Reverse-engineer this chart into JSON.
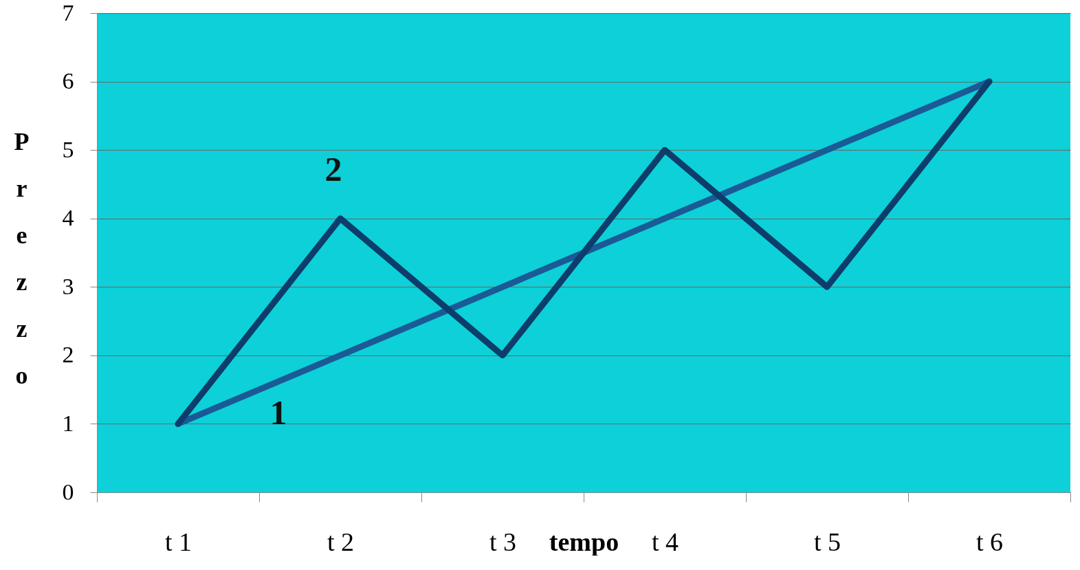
{
  "chart_data": {
    "type": "line",
    "xlabel": "tempo",
    "ylabel": "Prezzo",
    "categories": [
      "t 1",
      "t 2",
      "t 3",
      "t 4",
      "t 5",
      "t 6"
    ],
    "series": [
      {
        "name": "1",
        "color": "#1a5a96",
        "values": [
          1,
          2,
          3,
          4,
          5,
          6
        ]
      },
      {
        "name": "2",
        "color": "#0d3d6b",
        "values": [
          1,
          4,
          2,
          5,
          3,
          6
        ]
      }
    ],
    "ylim": [
      0,
      7
    ],
    "yticks": [
      0,
      1,
      2,
      3,
      4,
      5,
      6,
      7
    ],
    "grid": "y",
    "marker": "none",
    "line_style": "solid"
  }
}
